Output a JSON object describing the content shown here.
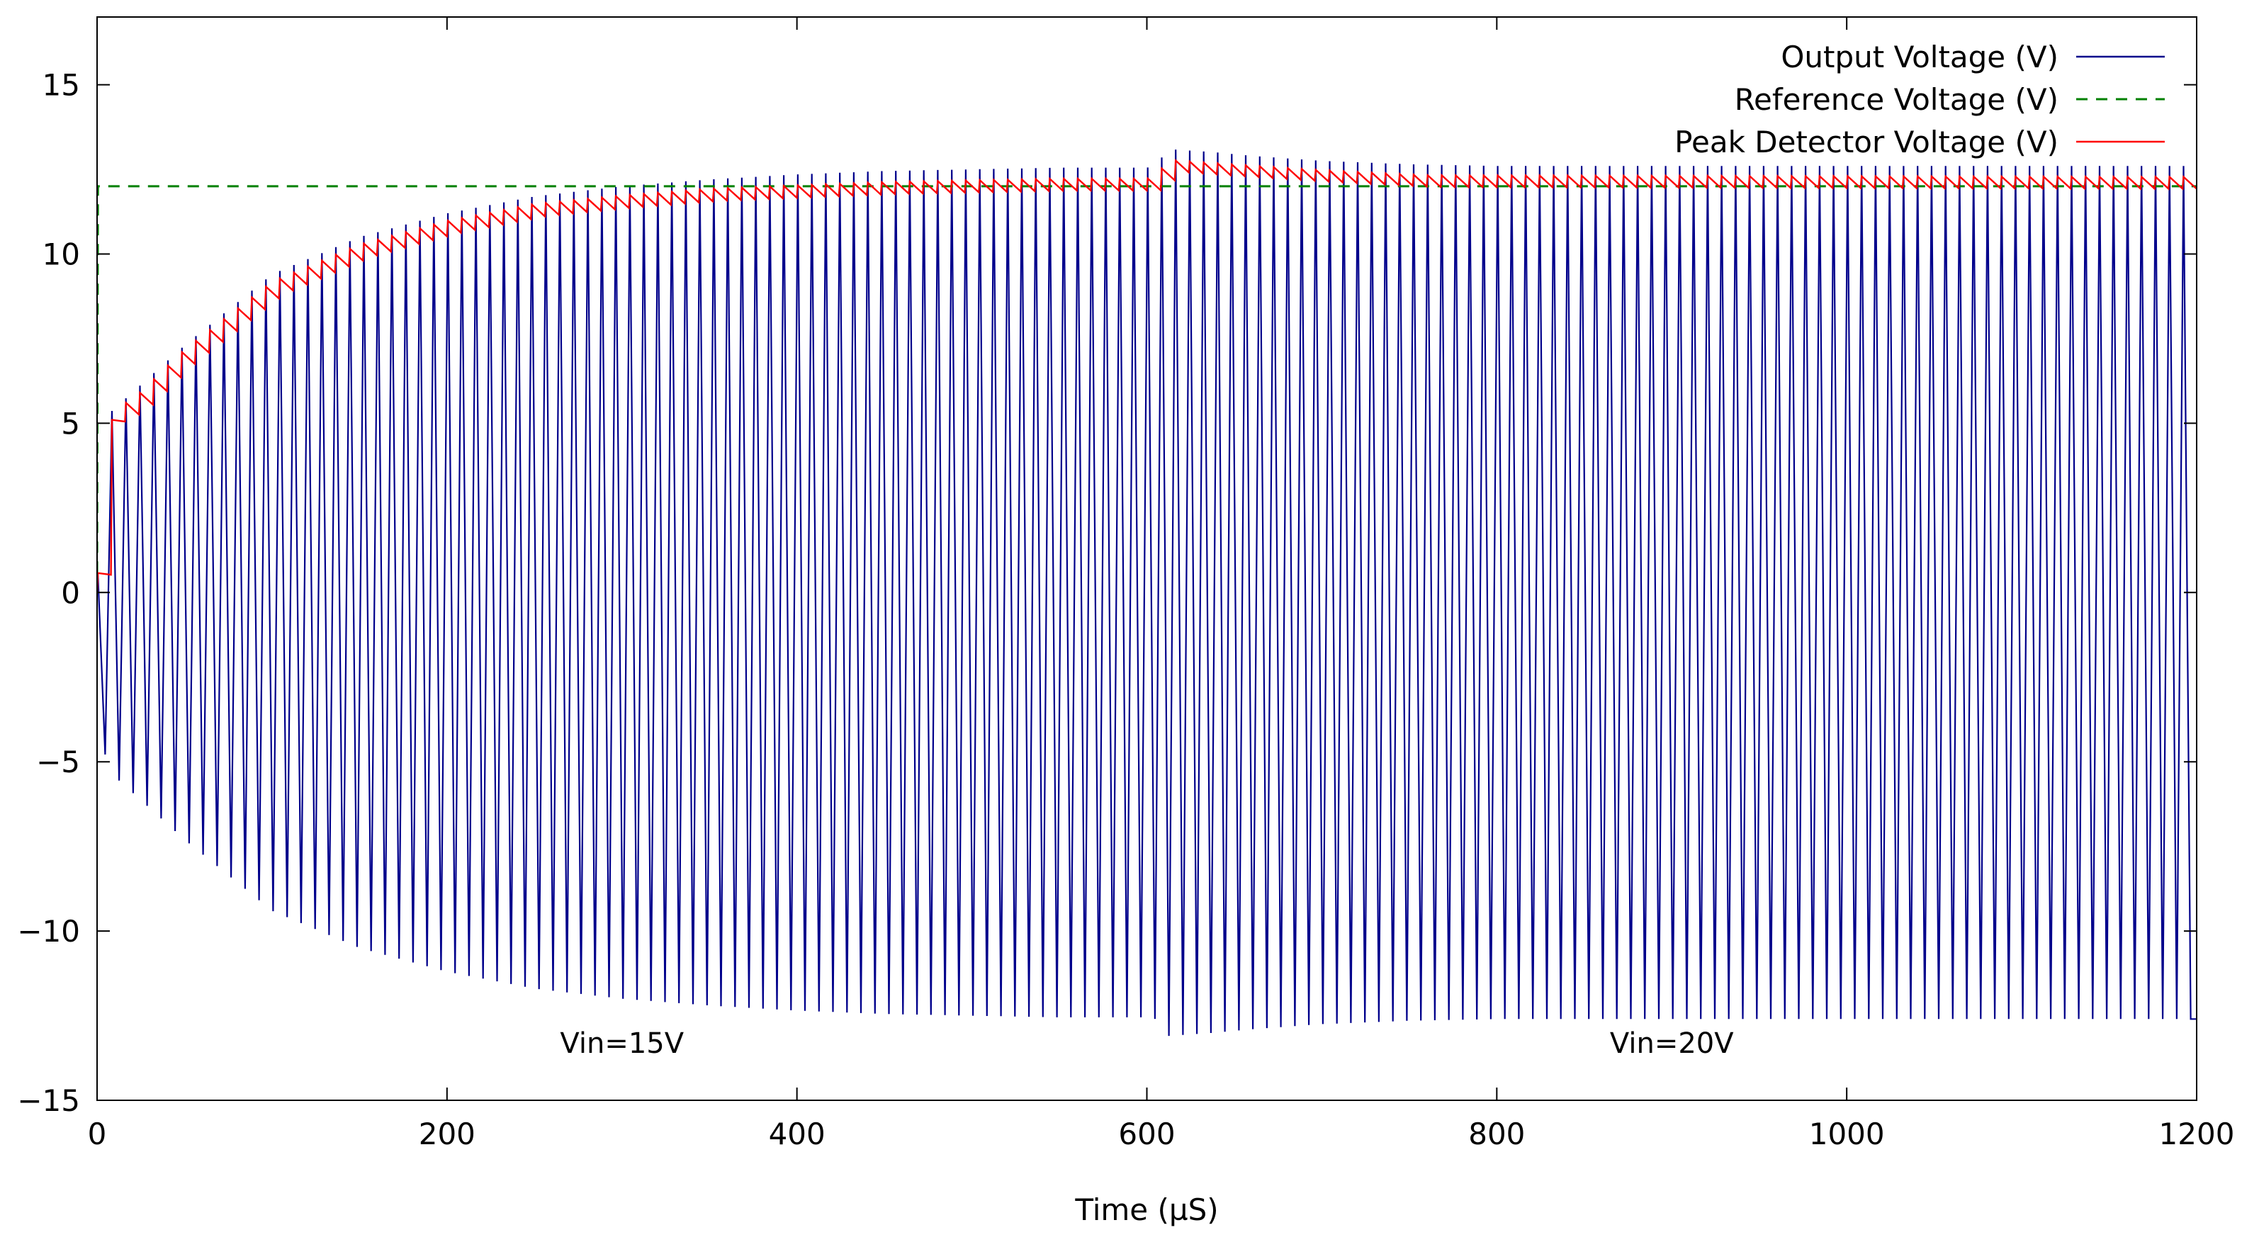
{
  "chart_data": {
    "type": "line",
    "title": "",
    "xlabel": "Time (µS)",
    "ylabel": "",
    "xlim": [
      0,
      1200
    ],
    "ylim": [
      -15,
      17
    ],
    "x_ticks": [
      0,
      200,
      400,
      600,
      800,
      1000,
      1200
    ],
    "y_ticks": [
      -15,
      -10,
      -5,
      0,
      5,
      10,
      15
    ],
    "x_tick_labels": [
      "0",
      "200",
      "400",
      "600",
      "800",
      "1000",
      "1200"
    ],
    "y_tick_labels": [
      "−15",
      "−10",
      "−5",
      "0",
      "5",
      "10",
      "15"
    ],
    "grid": false,
    "legend_position": "top-right",
    "oscillation_period": 8,
    "series": [
      {
        "name": "Output Voltage (V)",
        "color": "#00008b",
        "style": "solid",
        "envelope_amplitude": [
          [
            0,
            0
          ],
          [
            5,
            5.2
          ],
          [
            20,
            5.9
          ],
          [
            50,
            7.3
          ],
          [
            100,
            9.4
          ],
          [
            150,
            10.5
          ],
          [
            200,
            11.2
          ],
          [
            250,
            11.7
          ],
          [
            300,
            12.0
          ],
          [
            350,
            12.2
          ],
          [
            400,
            12.35
          ],
          [
            450,
            12.45
          ],
          [
            500,
            12.5
          ],
          [
            550,
            12.55
          ],
          [
            600,
            12.55
          ],
          [
            605,
            12.6
          ],
          [
            612,
            13.1
          ],
          [
            640,
            13.0
          ],
          [
            660,
            12.9
          ],
          [
            700,
            12.75
          ],
          [
            750,
            12.65
          ],
          [
            800,
            12.6
          ],
          [
            900,
            12.6
          ],
          [
            1200,
            12.6
          ]
        ]
      },
      {
        "name": "Reference Voltage (V)",
        "color": "#008000",
        "style": "dashed",
        "x": [
          0,
          0.5,
          1200
        ],
        "y": [
          0,
          12,
          12
        ]
      },
      {
        "name": "Peak Detector Voltage (V)",
        "color": "#ff0000",
        "style": "solid",
        "envelope_level": [
          [
            0,
            0
          ],
          [
            2,
            2.2
          ],
          [
            6,
            4.7
          ],
          [
            10,
            5.3
          ],
          [
            20,
            5.5
          ],
          [
            50,
            7.0
          ],
          [
            100,
            9.0
          ],
          [
            150,
            10.1
          ],
          [
            200,
            10.8
          ],
          [
            250,
            11.3
          ],
          [
            300,
            11.55
          ],
          [
            350,
            11.75
          ],
          [
            400,
            11.85
          ],
          [
            450,
            11.95
          ],
          [
            500,
            12.0
          ],
          [
            550,
            12.05
          ],
          [
            600,
            12.05
          ],
          [
            605,
            12.1
          ],
          [
            612,
            12.6
          ],
          [
            640,
            12.5
          ],
          [
            700,
            12.3
          ],
          [
            760,
            12.15
          ],
          [
            1200,
            12.1
          ]
        ],
        "ripple": 0.35
      }
    ],
    "annotations": [
      {
        "text": "Vin=15V",
        "x": 300,
        "y": -13.3
      },
      {
        "text": "Vin=20V",
        "x": 900,
        "y": -13.3
      }
    ]
  }
}
